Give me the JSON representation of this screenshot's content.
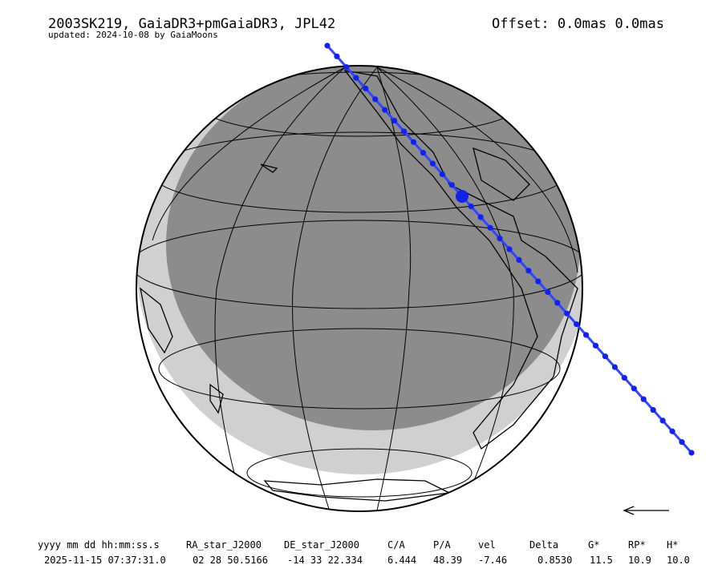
{
  "header": {
    "title": "2003SK219, GaiaDR3+pmGaiaDR3, JPL42",
    "updated": "updated: 2024-10-08 by GaiaMoons",
    "offset": "Offset: 0.0mas 0.0mas"
  },
  "table": {
    "columns": [
      "yyyy mm dd hh:mm:ss.s",
      "RA_star_J2000",
      "DE_star_J2000",
      "C/A",
      "P/A",
      "vel",
      "Delta",
      "G*",
      "RP*",
      "H*"
    ],
    "rows": [
      [
        "2025-11-15 07:37:31.0",
        "02 28 50.5166",
        "-14 33 22.334",
        "6.444",
        "48.39",
        "-7.46",
        "0.8530",
        "11.5",
        "10.9",
        "10.0"
      ]
    ]
  }
}
